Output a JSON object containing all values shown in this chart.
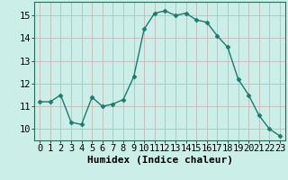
{
  "x": [
    0,
    1,
    2,
    3,
    4,
    5,
    6,
    7,
    8,
    9,
    10,
    11,
    12,
    13,
    14,
    15,
    16,
    17,
    18,
    19,
    20,
    21,
    22,
    23
  ],
  "y": [
    11.2,
    11.2,
    11.5,
    10.3,
    10.2,
    11.4,
    11.0,
    11.1,
    11.3,
    12.3,
    14.4,
    15.1,
    15.2,
    15.0,
    15.1,
    14.8,
    14.7,
    14.1,
    13.6,
    12.2,
    11.5,
    10.6,
    10.0,
    9.7
  ],
  "line_color": "#1a7a6e",
  "marker": "D",
  "marker_size": 2.5,
  "bg_color": "#cceee8",
  "grid_color": "#c8b8b8",
  "xlabel": "Humidex (Indice chaleur)",
  "ylim": [
    9.5,
    15.6
  ],
  "xlim": [
    -0.5,
    23.5
  ],
  "yticks": [
    10,
    11,
    12,
    13,
    14,
    15
  ],
  "xticks": [
    0,
    1,
    2,
    3,
    4,
    5,
    6,
    7,
    8,
    9,
    10,
    11,
    12,
    13,
    14,
    15,
    16,
    17,
    18,
    19,
    20,
    21,
    22,
    23
  ],
  "xlabel_fontsize": 8,
  "tick_fontsize": 7.5
}
